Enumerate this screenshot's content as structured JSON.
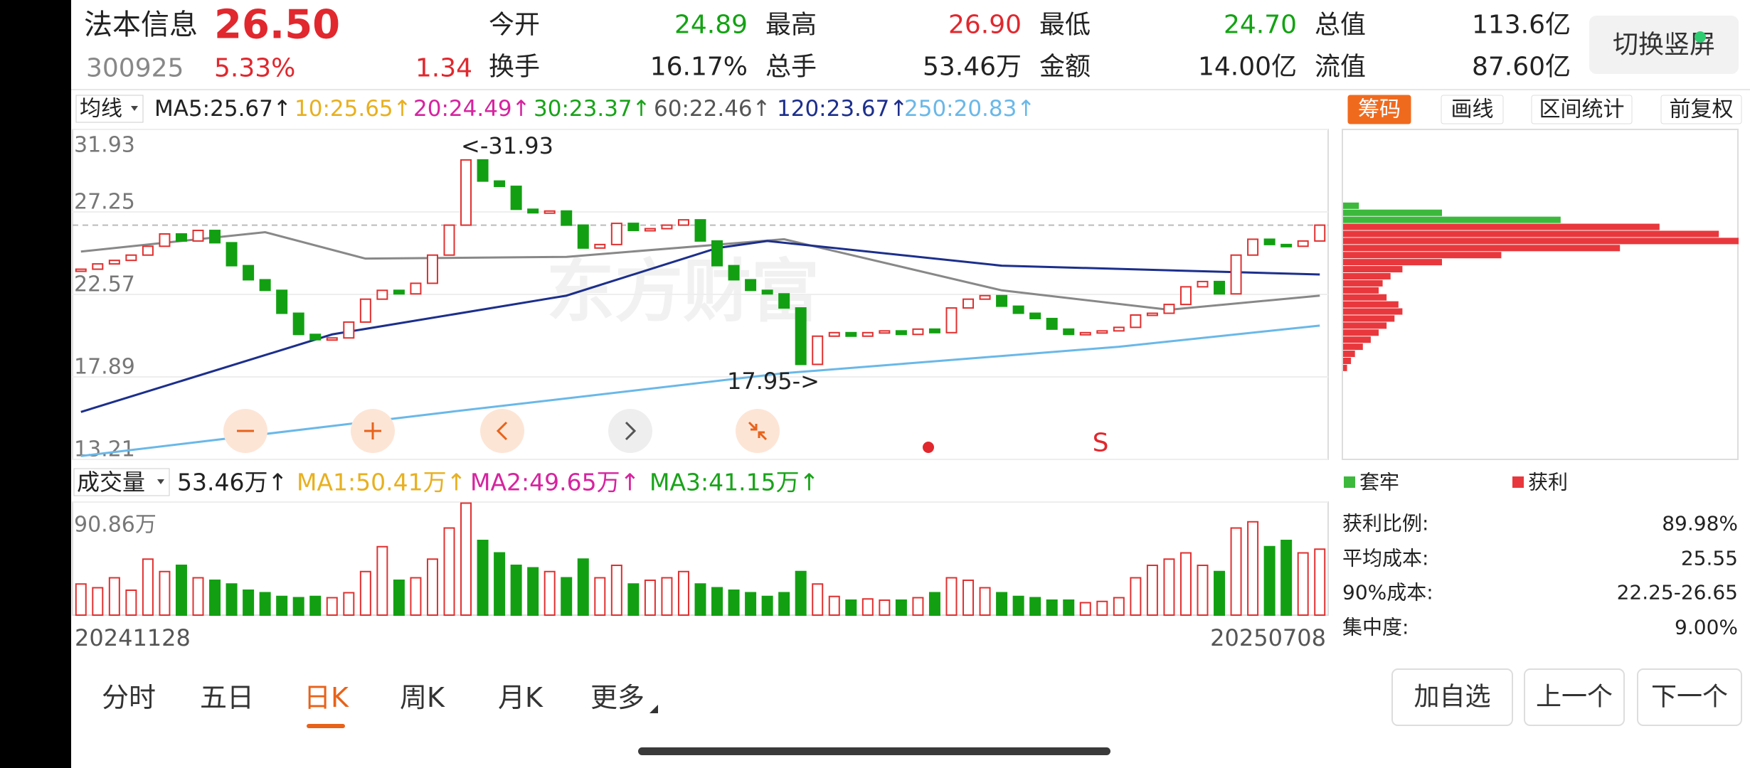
{
  "header": {
    "name": "法本信息",
    "price": "26.50",
    "code": "300925",
    "change_pct": "5.33%",
    "change": "1.34",
    "stats": [
      {
        "label": "今开",
        "value": "24.89",
        "color": "#13a313"
      },
      {
        "label": "最高",
        "value": "26.90",
        "color": "#e0282e"
      },
      {
        "label": "最低",
        "value": "24.70",
        "color": "#13a313"
      },
      {
        "label": "总值",
        "value": "113.6亿",
        "color": "#222222"
      },
      {
        "label": "换手",
        "value": "16.17%",
        "color": "#222222"
      },
      {
        "label": "总手",
        "value": "53.46万",
        "color": "#222222"
      },
      {
        "label": "金额",
        "value": "14.00亿",
        "color": "#222222"
      },
      {
        "label": "流值",
        "value": "87.60亿",
        "color": "#222222"
      }
    ]
  },
  "toggle_button": "切换竖屏",
  "ma_legend": {
    "selector": "均线",
    "items": [
      {
        "text": "MA5:25.67↑",
        "color": "#222222"
      },
      {
        "text": "10:25.65↑",
        "color": "#e8b020"
      },
      {
        "text": "20:24.49↑",
        "color": "#d6249f"
      },
      {
        "text": "30:23.37↑",
        "color": "#19a319"
      },
      {
        "text": "60:22.46↑",
        "color": "#555555"
      },
      {
        "text": "120:23.67↑",
        "color": "#1c2f8c"
      },
      {
        "text": "250:20.83↑",
        "color": "#6ab8e8"
      }
    ]
  },
  "price_chart": {
    "type": "candlestick",
    "ylim": [
      13.21,
      31.93
    ],
    "yticks": [
      13.21,
      17.89,
      22.57,
      27.25,
      31.93
    ],
    "up_color": "#e03030",
    "down_color": "#12a012",
    "closes": [
      24.0,
      24.3,
      24.5,
      24.8,
      25.3,
      26.0,
      25.6,
      26.2,
      25.5,
      24.2,
      23.4,
      22.8,
      21.5,
      20.3,
      20.0,
      20.1,
      21.0,
      22.3,
      22.8,
      22.6,
      23.2,
      24.8,
      26.5,
      30.2,
      29.0,
      28.7,
      27.4,
      27.2,
      27.3,
      26.5,
      25.2,
      25.4,
      26.6,
      26.2,
      26.3,
      26.5,
      26.8,
      25.6,
      24.2,
      23.4,
      22.8,
      22.6,
      21.8,
      18.6,
      20.2,
      20.4,
      20.2,
      20.4,
      20.5,
      20.3,
      20.6,
      20.4,
      21.8,
      22.3,
      22.5,
      21.9,
      21.5,
      21.2,
      20.6,
      20.3,
      20.4,
      20.5,
      20.7,
      21.4,
      21.5,
      22.0,
      23.0,
      23.3,
      22.6,
      24.8,
      25.7,
      25.4,
      25.3,
      25.6,
      26.5
    ],
    "ma_lines": [
      {
        "color": "#888888",
        "index": [
          0,
          11,
          17,
          29,
          42,
          55,
          65,
          74
        ],
        "values": [
          25.0,
          26.1,
          24.6,
          24.7,
          25.7,
          22.8,
          21.7,
          22.5
        ]
      },
      {
        "color": "#1c2f8c",
        "index": [
          0,
          15,
          29,
          38,
          41,
          55,
          74
        ],
        "values": [
          15.9,
          20.3,
          22.5,
          25.2,
          25.6,
          24.2,
          23.7
        ]
      },
      {
        "color": "#6ab8e8",
        "index": [
          0,
          22,
          42,
          62,
          74
        ],
        "values": [
          13.4,
          15.9,
          18.1,
          19.6,
          20.8
        ]
      }
    ],
    "annotations": [
      "<-31.93",
      "17.95->"
    ],
    "watermark": "东方财富",
    "marker": "S"
  },
  "chip_panel": {
    "tabs": [
      "筹码",
      "画线",
      "区间统计",
      "前复权"
    ],
    "active_tab": 0,
    "series": [
      {
        "name": "套牢",
        "color": "#3cb93c",
        "prices": [
          27.6,
          27.2,
          26.8
        ],
        "values": [
          4,
          25,
          55
        ]
      },
      {
        "name": "获利",
        "color": "#e8383d",
        "prices": [
          26.4,
          26.0,
          25.6,
          25.2,
          24.8,
          24.4,
          24.0,
          23.6,
          23.2,
          22.8,
          22.4,
          22.0,
          21.6,
          21.2,
          20.8,
          20.4,
          20.0,
          19.6,
          19.2,
          18.8,
          18.4
        ],
        "values": [
          80,
          95,
          100,
          70,
          40,
          25,
          15,
          12,
          10,
          9,
          11,
          14,
          15,
          13,
          11,
          9,
          7,
          5,
          3,
          2,
          1
        ]
      }
    ],
    "xlim": [
      0,
      100
    ],
    "stats": [
      {
        "label": "获利比例:",
        "value": "89.98%"
      },
      {
        "label": "平均成本:",
        "value": "25.55"
      },
      {
        "label": "90%成本:",
        "value": "22.25-26.65"
      },
      {
        "label": "集中度:",
        "value": "9.00%"
      }
    ]
  },
  "volume_legend": {
    "selector": "成交量",
    "items": [
      {
        "text": "53.46万↑",
        "color": "#222222"
      },
      {
        "text": "MA1:50.41万↑",
        "color": "#e8b020"
      },
      {
        "text": "MA2:49.65万↑",
        "color": "#d6249f"
      },
      {
        "text": "MA3:41.15万↑",
        "color": "#19a319"
      }
    ]
  },
  "volume_chart": {
    "type": "bar",
    "ylim": [
      0,
      90.86
    ],
    "yticks": [
      {
        "value": 90.86,
        "label": "90.86万"
      }
    ],
    "values": [
      25,
      22,
      30,
      20,
      45,
      35,
      40,
      30,
      28,
      25,
      20,
      18,
      15,
      14,
      15,
      14,
      18,
      35,
      55,
      28,
      30,
      45,
      70,
      90,
      60,
      50,
      40,
      38,
      35,
      30,
      45,
      30,
      40,
      25,
      28,
      30,
      35,
      25,
      22,
      20,
      18,
      15,
      18,
      35,
      25,
      15,
      12,
      13,
      12,
      12,
      14,
      18,
      30,
      28,
      22,
      18,
      15,
      14,
      12,
      12,
      10,
      11,
      14,
      30,
      40,
      45,
      50,
      40,
      35,
      70,
      75,
      55,
      60,
      50,
      53
    ]
  },
  "dates": [
    "20241128",
    "20250708"
  ],
  "tabs": {
    "items": [
      "分时",
      "五日",
      "日K",
      "周K",
      "月K",
      "更多"
    ],
    "active": 2
  },
  "buttons": [
    "加自选",
    "上一个",
    "下一个"
  ]
}
